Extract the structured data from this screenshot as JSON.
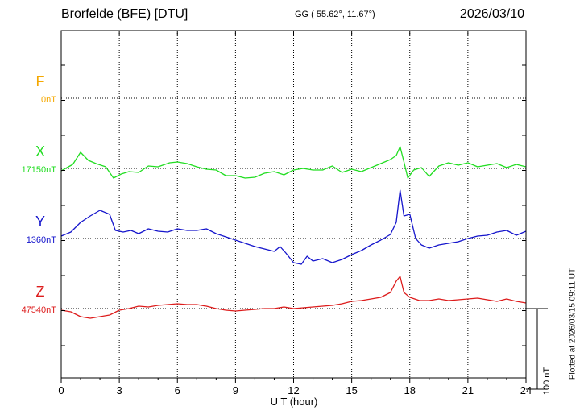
{
  "header": {
    "station": "Brorfelde (BFE)  [DTU]",
    "coords": "GG ( 55.62°,  11.67°)",
    "date": "2026/03/10"
  },
  "plotted_note": "Plotted at 2026/03/15 09:11 UT",
  "scale_bar": {
    "label": "100 nT",
    "value_nT": 100
  },
  "colors": {
    "F": "#f5a800",
    "X": "#22dd22",
    "Y": "#1515cc",
    "Z": "#dd1c1c"
  },
  "chart_data": {
    "type": "line",
    "title": "Brorfelde (BFE)  [DTU]",
    "xlabel": "U T (hour)",
    "xlim": [
      0,
      24
    ],
    "xticks": [
      "0",
      "3",
      "6",
      "9",
      "12",
      "15",
      "18",
      "21",
      "24"
    ],
    "grid": true,
    "scale_nT": 100,
    "series": [
      {
        "name": "F",
        "baseline_label": "0nT",
        "x": [],
        "values": []
      },
      {
        "name": "X",
        "baseline_label": "17150nT",
        "x": [
          0,
          0.6,
          1.0,
          1.4,
          1.8,
          2.3,
          2.7,
          3.1,
          3.5,
          4.0,
          4.5,
          5.0,
          5.6,
          6.0,
          6.5,
          7.0,
          7.5,
          8.0,
          8.5,
          9.0,
          9.5,
          10.0,
          10.5,
          11.0,
          11.5,
          12.0,
          12.5,
          13.0,
          13.5,
          14.0,
          14.5,
          15.0,
          15.5,
          16.0,
          16.5,
          17.0,
          17.3,
          17.5,
          17.7,
          17.9,
          18.2,
          18.6,
          19.0,
          19.5,
          20.0,
          20.5,
          21.0,
          21.5,
          22.0,
          22.5,
          23.0,
          23.5,
          24.0
        ],
        "values": [
          -3,
          5,
          20,
          10,
          6,
          2,
          -12,
          -7,
          -4,
          -5,
          3,
          2,
          7,
          8,
          6,
          2,
          -1,
          -2,
          -9,
          -9,
          -12,
          -11,
          -6,
          -4,
          -8,
          -2,
          0,
          -2,
          -2,
          3,
          -5,
          -1,
          -4,
          1,
          6,
          11,
          16,
          27,
          8,
          -12,
          -2,
          1,
          -10,
          3,
          7,
          4,
          7,
          2,
          4,
          6,
          1,
          5,
          2
        ]
      },
      {
        "name": "Y",
        "baseline_label": "1360nT",
        "x": [
          0,
          0.5,
          1.0,
          1.5,
          2.0,
          2.5,
          2.8,
          3.2,
          3.6,
          4.0,
          4.5,
          5.0,
          5.5,
          6.0,
          6.5,
          7.0,
          7.5,
          8.0,
          8.5,
          9.0,
          9.5,
          10.0,
          10.5,
          11.0,
          11.3,
          11.6,
          12.0,
          12.4,
          12.7,
          13.0,
          13.5,
          14.0,
          14.5,
          15.0,
          15.5,
          16.0,
          16.5,
          17.0,
          17.3,
          17.5,
          17.7,
          18.0,
          18.3,
          18.6,
          19.0,
          19.5,
          20.0,
          20.5,
          21.0,
          21.5,
          22.0,
          22.5,
          23.0,
          23.5,
          24.0
        ],
        "values": [
          3,
          8,
          20,
          28,
          35,
          30,
          10,
          8,
          10,
          6,
          12,
          9,
          8,
          12,
          10,
          10,
          12,
          6,
          2,
          -2,
          -6,
          -10,
          -13,
          -16,
          -10,
          -18,
          -30,
          -32,
          -22,
          -28,
          -25,
          -30,
          -26,
          -20,
          -15,
          -8,
          -2,
          5,
          20,
          60,
          28,
          30,
          0,
          -8,
          -12,
          -8,
          -6,
          -4,
          0,
          3,
          4,
          8,
          10,
          4,
          9
        ]
      },
      {
        "name": "Z",
        "baseline_label": "47540nT",
        "x": [
          0,
          0.5,
          1.0,
          1.5,
          2.0,
          2.5,
          3.0,
          3.5,
          4.0,
          4.5,
          5.0,
          5.5,
          6.0,
          6.5,
          7.0,
          7.5,
          8.0,
          8.5,
          9.0,
          9.5,
          10.0,
          10.5,
          11.0,
          11.5,
          12.0,
          12.5,
          13.0,
          13.5,
          14.0,
          14.5,
          15.0,
          15.5,
          16.0,
          16.5,
          17.0,
          17.3,
          17.5,
          17.7,
          18.0,
          18.5,
          19.0,
          19.5,
          20.0,
          20.5,
          21.0,
          21.5,
          22.0,
          22.5,
          23.0,
          23.5,
          24.0
        ],
        "values": [
          -2,
          -4,
          -10,
          -12,
          -10,
          -8,
          -2,
          0,
          3,
          2,
          4,
          5,
          6,
          5,
          5,
          3,
          0,
          -2,
          -3,
          -2,
          -1,
          0,
          0,
          2,
          0,
          1,
          2,
          3,
          4,
          6,
          9,
          10,
          12,
          14,
          20,
          34,
          40,
          20,
          14,
          10,
          10,
          12,
          10,
          11,
          12,
          13,
          11,
          9,
          12,
          9,
          7
        ]
      }
    ]
  },
  "axis": {
    "xlabel": "U T (hour)"
  }
}
